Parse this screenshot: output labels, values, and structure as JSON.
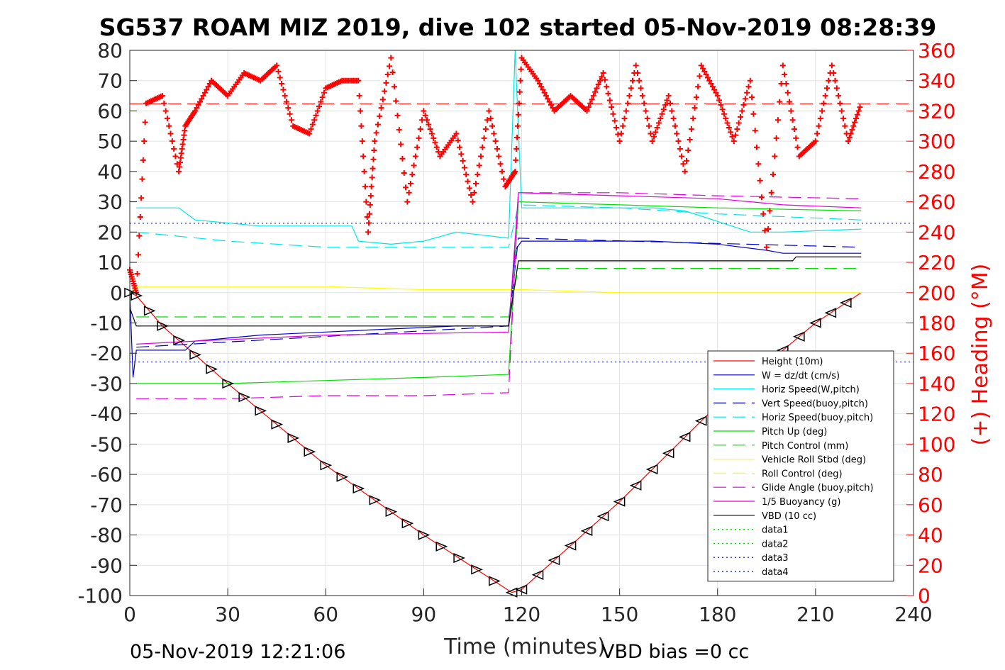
{
  "chart_data": {
    "type": "line",
    "title": "SG537 ROAM MIZ 2019, dive 102 started 05-Nov-2019 08:28:39",
    "xlabel": "Time (minutes)",
    "ylabel": "",
    "ylabel_right": "(+) Heading (°M)",
    "footer_left": "05-Nov-2019 12:21:06",
    "footer_right": "VBD bias =0 cc",
    "xlim": [
      0,
      240
    ],
    "ylim": [
      -100,
      80
    ],
    "ylim_right": [
      0,
      360
    ],
    "xticks": [
      "0",
      "30",
      "60",
      "90",
      "120",
      "150",
      "180",
      "210",
      "240"
    ],
    "yticks": [
      "80",
      "70",
      "60",
      "50",
      "40",
      "30",
      "20",
      "10",
      "0",
      "-10",
      "-20",
      "-30",
      "-40",
      "-50",
      "-60",
      "-70",
      "-80",
      "-90",
      "-100"
    ],
    "yticks_right": [
      "360",
      "340",
      "320",
      "300",
      "280",
      "260",
      "240",
      "220",
      "200",
      "180",
      "160",
      "140",
      "120",
      "100",
      "80",
      "60",
      "40",
      "20",
      "0"
    ],
    "grid": true,
    "legend_position": "lower-right",
    "colors": {
      "height": "#ff0000",
      "w": "#0000cc",
      "horiz_speed": "#00e5e5",
      "vert_speed_buoy": "#0000cc",
      "horiz_speed_buoy": "#00e5e5",
      "pitch_up": "#00e000",
      "pitch_control": "#00e000",
      "roll": "#ffff00",
      "roll_control": "#ffff00",
      "glide_angle": "#e000e0",
      "buoyancy": "#e000e0",
      "vbd": "#000000",
      "heading": "#ff0000",
      "data_green": "#00e000",
      "data_blue": "#0000cc"
    },
    "legend": [
      {
        "label": "Height (10m)",
        "color": "#ff0000",
        "dash": "solid"
      },
      {
        "label": "W = dz/dt (cm/s)",
        "color": "#0000cc",
        "dash": "solid"
      },
      {
        "label": "Horiz Speed(W,pitch)",
        "color": "#00e5e5",
        "dash": "solid"
      },
      {
        "label": "Vert Speed(buoy,pitch)",
        "color": "#0000cc",
        "dash": "dashed"
      },
      {
        "label": "Horiz Speed(buoy,pitch)",
        "color": "#00e5e5",
        "dash": "dashed"
      },
      {
        "label": "Pitch Up (deg)",
        "color": "#00e000",
        "dash": "solid"
      },
      {
        "label": "Pitch Control (mm)",
        "color": "#00e000",
        "dash": "dashed"
      },
      {
        "label": "Vehicle Roll Stbd (deg)",
        "color": "#ffff00",
        "dash": "solid"
      },
      {
        "label": "Roll Control (deg)",
        "color": "#ffff00",
        "dash": "dashed"
      },
      {
        "label": "Glide Angle (buoy,pitch)",
        "color": "#e000e0",
        "dash": "dashed"
      },
      {
        "label": "1/5 Buoyancy (g)",
        "color": "#e000e0",
        "dash": "solid"
      },
      {
        "label": "VBD (10 cc)",
        "color": "#000000",
        "dash": "solid"
      },
      {
        "label": "data1",
        "color": "#00e000",
        "dash": "dotted"
      },
      {
        "label": "data2",
        "color": "#00e000",
        "dash": "dotted"
      },
      {
        "label": "data3",
        "color": "#0000cc",
        "dash": "dotted"
      },
      {
        "label": "data4",
        "color": "#0000cc",
        "dash": "dotted"
      }
    ],
    "series": [
      {
        "name": "Height (10m)",
        "axis": "left",
        "x": [
          0,
          2,
          10,
          30,
          60,
          90,
          117,
          120,
          150,
          180,
          210,
          224
        ],
        "y": [
          0,
          -1,
          -11,
          -30,
          -57,
          -80,
          -99,
          -98,
          -69,
          -37,
          -10,
          0
        ]
      },
      {
        "name": "W = dz/dt (cm/s)",
        "axis": "left",
        "x": [
          0,
          1,
          2,
          5,
          10,
          17,
          20,
          40,
          60,
          80,
          100,
          116,
          118,
          120,
          140,
          160,
          180,
          195,
          200,
          224
        ],
        "y": [
          0,
          -28,
          -19,
          -19,
          -19,
          -19,
          -16,
          -14,
          -13,
          -12,
          -11,
          -11,
          14,
          17,
          17,
          17,
          16,
          14,
          13,
          13
        ]
      },
      {
        "name": "Horiz Speed(W,pitch)",
        "axis": "left",
        "x": [
          2,
          10,
          15,
          20,
          40,
          60,
          68,
          70,
          80,
          90,
          100,
          116,
          118,
          120,
          140,
          160,
          170,
          190,
          200,
          224
        ],
        "y": [
          28,
          28,
          28,
          24,
          22,
          22,
          22,
          17,
          16,
          17,
          20,
          18,
          80,
          28,
          28,
          28,
          27,
          20,
          20,
          21
        ]
      },
      {
        "name": "Vert Speed(buoy,pitch)",
        "axis": "left",
        "x": [
          2,
          116,
          119,
          224
        ],
        "y": [
          -18,
          -11,
          18,
          15
        ]
      },
      {
        "name": "Horiz Speed(buoy,pitch)",
        "axis": "left",
        "x": [
          2,
          30,
          60,
          90,
          116,
          119,
          150,
          180,
          224
        ],
        "y": [
          20,
          17,
          15,
          15,
          15,
          29,
          28,
          26,
          24
        ]
      },
      {
        "name": "Pitch Up (deg)",
        "axis": "left",
        "x": [
          2,
          30,
          60,
          90,
          116,
          119,
          150,
          180,
          224
        ],
        "y": [
          -30,
          -30,
          -29,
          -28,
          -27,
          30,
          29,
          28,
          27
        ]
      },
      {
        "name": "Pitch Control (mm)",
        "axis": "left",
        "x": [
          2,
          116,
          119,
          224
        ],
        "y": [
          -8,
          -8,
          8,
          8
        ]
      },
      {
        "name": "Vehicle Roll Stbd (deg)",
        "axis": "left",
        "x": [
          0,
          2,
          10,
          30,
          60,
          90,
          116,
          120,
          150,
          180,
          224
        ],
        "y": [
          0,
          2,
          2,
          2,
          2,
          1,
          1,
          1,
          0,
          0,
          0
        ]
      },
      {
        "name": "Glide Angle (buoy,pitch)",
        "axis": "left",
        "x": [
          2,
          30,
          60,
          90,
          116,
          119,
          150,
          180,
          224
        ],
        "y": [
          -35,
          -35,
          -34,
          -34,
          -33,
          33,
          33,
          32,
          31
        ]
      },
      {
        "name": "1/5 Buoyancy (g)",
        "axis": "left",
        "x": [
          2,
          20,
          60,
          116,
          119,
          150,
          180,
          200,
          224
        ],
        "y": [
          -17,
          -16,
          -14,
          -13,
          33,
          32,
          31,
          29,
          28
        ]
      },
      {
        "name": "VBD (10 cc)",
        "axis": "left",
        "x": [
          0,
          2,
          116,
          119,
          203,
          204,
          224
        ],
        "y": [
          -5,
          -11,
          -11,
          10.5,
          10.5,
          11.8,
          11.8
        ]
      },
      {
        "name": "Heading",
        "axis": "right",
        "marker": "+",
        "x": [
          0,
          2,
          5,
          10,
          15,
          17,
          20,
          25,
          30,
          35,
          40,
          45,
          50,
          55,
          60,
          65,
          70,
          73,
          75,
          80,
          85,
          90,
          95,
          100,
          105,
          110,
          115,
          118,
          120,
          125,
          130,
          135,
          140,
          145,
          150,
          155,
          160,
          165,
          170,
          175,
          180,
          185,
          190,
          195,
          200,
          205,
          210,
          215,
          220,
          224
        ],
        "y": [
          215,
          200,
          325,
          330,
          280,
          310,
          320,
          340,
          330,
          345,
          340,
          350,
          310,
          305,
          335,
          340,
          340,
          240,
          300,
          355,
          260,
          320,
          290,
          305,
          260,
          320,
          270,
          280,
          355,
          340,
          320,
          330,
          320,
          345,
          300,
          350,
          300,
          330,
          280,
          350,
          330,
          300,
          340,
          230,
          350,
          290,
          300,
          350,
          300,
          325
        ]
      }
    ],
    "reference_lines": [
      {
        "axis": "left",
        "y": 22.9,
        "color": "#0000cc",
        "dash": "dotted"
      },
      {
        "axis": "left",
        "y": -22.9,
        "color": "#0000cc",
        "dash": "dotted"
      },
      {
        "axis": "left",
        "y": 62.3,
        "color": "#ff0000",
        "dash": "dashed"
      }
    ]
  }
}
